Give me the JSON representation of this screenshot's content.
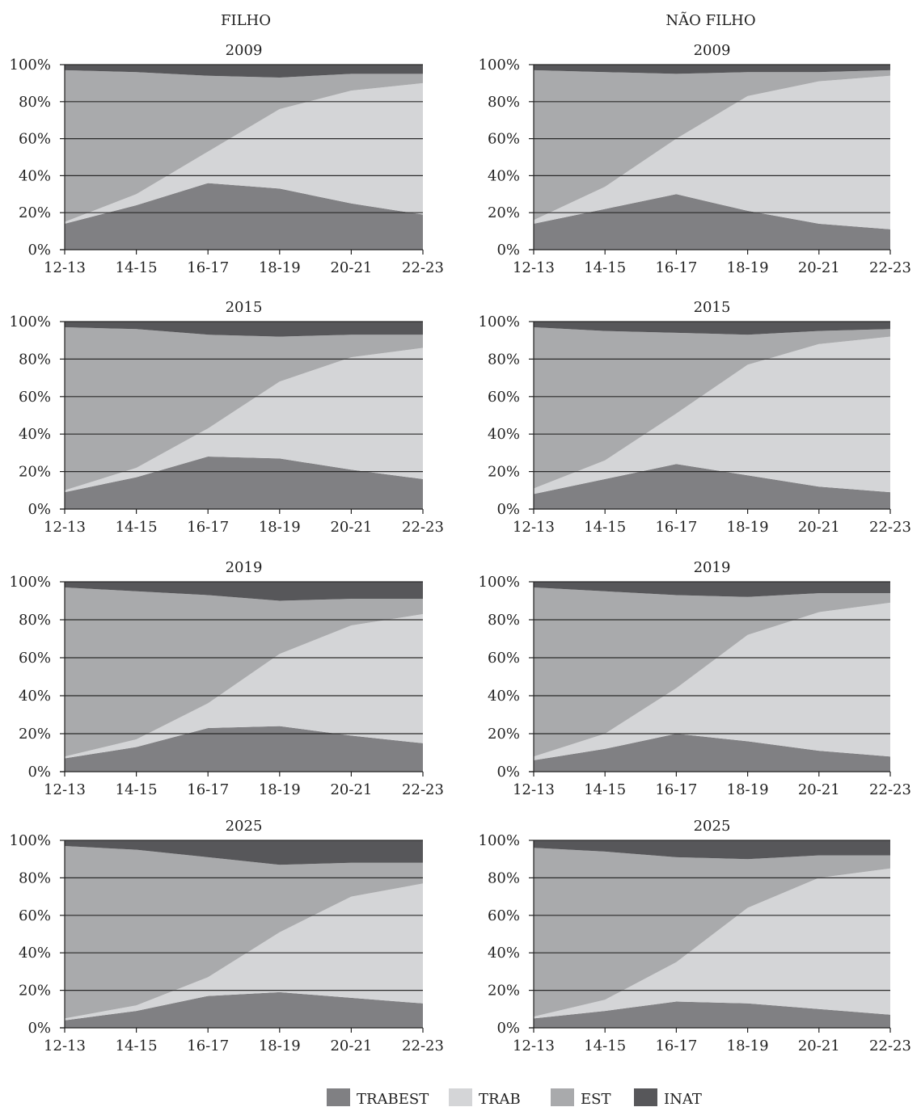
{
  "columns": [
    "FILHO",
    "NÃO FILHO"
  ],
  "colors": {
    "TRABEST": "#808083",
    "TRAB": "#d4d5d7",
    "EST": "#a9aaac",
    "INAT": "#57575a",
    "grid": "#2a2a2a"
  },
  "legend": [
    {
      "key": "TRABEST",
      "label": "TRABEST"
    },
    {
      "key": "TRAB",
      "label": "TRAB"
    },
    {
      "key": "EST",
      "label": "EST"
    },
    {
      "key": "INAT",
      "label": "INAT"
    }
  ],
  "chart_data": [
    {
      "type": "area",
      "stacked": true,
      "column": "FILHO",
      "title": "2009",
      "x": [
        "12-13",
        "14-15",
        "16-17",
        "18-19",
        "20-21",
        "22-23"
      ],
      "y_ticks": [
        "0%",
        "20%",
        "40%",
        "60%",
        "80%",
        "100%"
      ],
      "ylim": [
        0,
        100
      ],
      "grid": true,
      "series": [
        {
          "name": "TRABEST",
          "values": [
            14,
            24,
            36,
            33,
            25,
            19
          ]
        },
        {
          "name": "TRAB",
          "values": [
            1,
            6,
            17,
            43,
            61,
            71
          ]
        },
        {
          "name": "EST",
          "values": [
            82,
            66,
            41,
            17,
            9,
            5
          ]
        },
        {
          "name": "INAT",
          "values": [
            3,
            4,
            6,
            7,
            5,
            5
          ]
        }
      ]
    },
    {
      "type": "area",
      "stacked": true,
      "column": "NÃO FILHO",
      "title": "2009",
      "x": [
        "12-13",
        "14-15",
        "16-17",
        "18-19",
        "20-21",
        "22-23"
      ],
      "y_ticks": [
        "0%",
        "20%",
        "40%",
        "60%",
        "80%",
        "100%"
      ],
      "ylim": [
        0,
        100
      ],
      "grid": true,
      "series": [
        {
          "name": "TRABEST",
          "values": [
            14,
            22,
            30,
            21,
            14,
            11
          ]
        },
        {
          "name": "TRAB",
          "values": [
            2,
            12,
            30,
            62,
            77,
            83
          ]
        },
        {
          "name": "EST",
          "values": [
            81,
            62,
            35,
            13,
            5,
            3
          ]
        },
        {
          "name": "INAT",
          "values": [
            3,
            4,
            5,
            4,
            4,
            3
          ]
        }
      ]
    },
    {
      "type": "area",
      "stacked": true,
      "column": "FILHO",
      "title": "2015",
      "x": [
        "12-13",
        "14-15",
        "16-17",
        "18-19",
        "20-21",
        "22-23"
      ],
      "y_ticks": [
        "0%",
        "20%",
        "40%",
        "60%",
        "80%",
        "100%"
      ],
      "ylim": [
        0,
        100
      ],
      "grid": true,
      "series": [
        {
          "name": "TRABEST",
          "values": [
            9,
            17,
            28,
            27,
            21,
            16
          ]
        },
        {
          "name": "TRAB",
          "values": [
            1,
            5,
            15,
            41,
            60,
            70
          ]
        },
        {
          "name": "EST",
          "values": [
            87,
            74,
            50,
            24,
            12,
            7
          ]
        },
        {
          "name": "INAT",
          "values": [
            3,
            4,
            7,
            8,
            7,
            7
          ]
        }
      ]
    },
    {
      "type": "area",
      "stacked": true,
      "column": "NÃO FILHO",
      "title": "2015",
      "x": [
        "12-13",
        "14-15",
        "16-17",
        "18-19",
        "20-21",
        "22-23"
      ],
      "y_ticks": [
        "0%",
        "20%",
        "40%",
        "60%",
        "80%",
        "100%"
      ],
      "ylim": [
        0,
        100
      ],
      "grid": true,
      "series": [
        {
          "name": "TRABEST",
          "values": [
            8,
            16,
            24,
            18,
            12,
            9
          ]
        },
        {
          "name": "TRAB",
          "values": [
            3,
            10,
            27,
            59,
            76,
            83
          ]
        },
        {
          "name": "EST",
          "values": [
            86,
            69,
            43,
            16,
            7,
            4
          ]
        },
        {
          "name": "INAT",
          "values": [
            3,
            5,
            6,
            7,
            5,
            4
          ]
        }
      ]
    },
    {
      "type": "area",
      "stacked": true,
      "column": "FILHO",
      "title": "2019",
      "x": [
        "12-13",
        "14-15",
        "16-17",
        "18-19",
        "20-21",
        "22-23"
      ],
      "y_ticks": [
        "0%",
        "20%",
        "40%",
        "60%",
        "80%",
        "100%"
      ],
      "ylim": [
        0,
        100
      ],
      "grid": true,
      "series": [
        {
          "name": "TRABEST",
          "values": [
            7,
            13,
            23,
            24,
            19,
            15
          ]
        },
        {
          "name": "TRAB",
          "values": [
            1,
            4,
            13,
            38,
            58,
            68
          ]
        },
        {
          "name": "EST",
          "values": [
            89,
            78,
            57,
            28,
            14,
            8
          ]
        },
        {
          "name": "INAT",
          "values": [
            3,
            5,
            7,
            10,
            9,
            9
          ]
        }
      ]
    },
    {
      "type": "area",
      "stacked": true,
      "column": "NÃO FILHO",
      "title": "2019",
      "x": [
        "12-13",
        "14-15",
        "16-17",
        "18-19",
        "20-21",
        "22-23"
      ],
      "y_ticks": [
        "0%",
        "20%",
        "40%",
        "60%",
        "80%",
        "100%"
      ],
      "ylim": [
        0,
        100
      ],
      "grid": true,
      "series": [
        {
          "name": "TRABEST",
          "values": [
            6,
            12,
            20,
            16,
            11,
            8
          ]
        },
        {
          "name": "TRAB",
          "values": [
            2,
            8,
            24,
            56,
            73,
            81
          ]
        },
        {
          "name": "EST",
          "values": [
            89,
            75,
            49,
            20,
            10,
            5
          ]
        },
        {
          "name": "INAT",
          "values": [
            3,
            5,
            7,
            8,
            6,
            6
          ]
        }
      ]
    },
    {
      "type": "area",
      "stacked": true,
      "column": "FILHO",
      "title": "2025",
      "x": [
        "12-13",
        "14-15",
        "16-17",
        "18-19",
        "20-21",
        "22-23"
      ],
      "y_ticks": [
        "0%",
        "20%",
        "40%",
        "60%",
        "80%",
        "100%"
      ],
      "ylim": [
        0,
        100
      ],
      "grid": true,
      "series": [
        {
          "name": "TRABEST",
          "values": [
            4,
            9,
            17,
            19,
            16,
            13
          ]
        },
        {
          "name": "TRAB",
          "values": [
            1,
            3,
            10,
            32,
            54,
            64
          ]
        },
        {
          "name": "EST",
          "values": [
            92,
            83,
            64,
            36,
            18,
            11
          ]
        },
        {
          "name": "INAT",
          "values": [
            3,
            5,
            9,
            13,
            12,
            12
          ]
        }
      ]
    },
    {
      "type": "area",
      "stacked": true,
      "column": "NÃO FILHO",
      "title": "2025",
      "x": [
        "12-13",
        "14-15",
        "16-17",
        "18-19",
        "20-21",
        "22-23"
      ],
      "y_ticks": [
        "0%",
        "20%",
        "40%",
        "60%",
        "80%",
        "100%"
      ],
      "ylim": [
        0,
        100
      ],
      "grid": true,
      "series": [
        {
          "name": "TRABEST",
          "values": [
            5,
            9,
            14,
            13,
            10,
            7
          ]
        },
        {
          "name": "TRAB",
          "values": [
            1,
            6,
            21,
            51,
            70,
            78
          ]
        },
        {
          "name": "EST",
          "values": [
            90,
            79,
            56,
            26,
            12,
            7
          ]
        },
        {
          "name": "INAT",
          "values": [
            4,
            6,
            9,
            10,
            8,
            8
          ]
        }
      ]
    }
  ]
}
